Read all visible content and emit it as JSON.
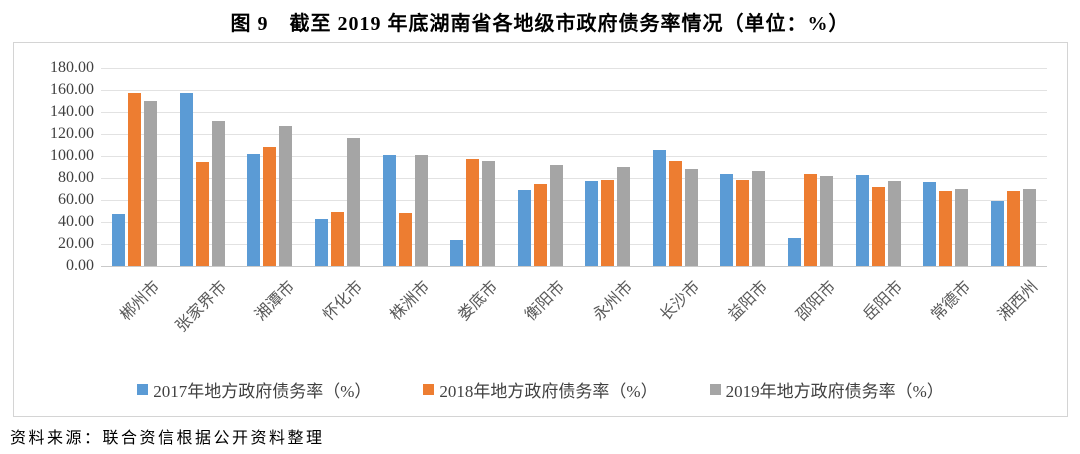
{
  "title": "图 9　截至 2019 年底湖南省各地级市政府债务率情况（单位：%）",
  "source_note": "资料来源：联合资信根据公开资料整理",
  "colors": {
    "series_2017": "#5B9BD5",
    "series_2018": "#ED7D31",
    "series_2019": "#A5A5A5",
    "gridline": "#e2e2e2",
    "axis_label": "#3f3f3f",
    "category_label": "#595959"
  },
  "chart_data": {
    "type": "bar",
    "title": "图 9　截至 2019 年底湖南省各地级市政府债务率情况（单位：%）",
    "categories": [
      "郴州市",
      "张家界市",
      "湘潭市",
      "怀化市",
      "株洲市",
      "娄底市",
      "衡阳市",
      "永州市",
      "长沙市",
      "益阳市",
      "邵阳市",
      "岳阳市",
      "常德市",
      "湘西州"
    ],
    "series": [
      {
        "name": "2017年地方政府债务率（%）",
        "color": "#5B9BD5",
        "values": [
          47.5,
          157.0,
          102.0,
          43.0,
          100.5,
          24.0,
          69.5,
          77.0,
          105.5,
          83.5,
          25.5,
          82.5,
          76.0,
          59.0
        ]
      },
      {
        "name": "2018年地方政府债务率（%）",
        "color": "#ED7D31",
        "values": [
          157.0,
          95.0,
          108.0,
          49.0,
          48.0,
          97.0,
          75.0,
          78.0,
          95.5,
          78.5,
          84.0,
          72.0,
          68.5,
          68.0
        ]
      },
      {
        "name": "2019年地方政府债务率（%）",
        "color": "#A5A5A5",
        "values": [
          150.0,
          131.5,
          127.0,
          116.0,
          100.5,
          95.5,
          91.5,
          90.0,
          88.0,
          86.0,
          81.5,
          77.0,
          70.0,
          70.0
        ]
      }
    ],
    "xlabel": "",
    "ylabel": "",
    "ylim": [
      0,
      180
    ],
    "ytick_step": 20,
    "ytick_labels": [
      "180.00",
      "160.00",
      "140.00",
      "120.00",
      "100.00",
      "80.00",
      "60.00",
      "40.00",
      "20.00",
      "0.00"
    ],
    "grid": "horizontal",
    "legend_position": "bottom"
  }
}
